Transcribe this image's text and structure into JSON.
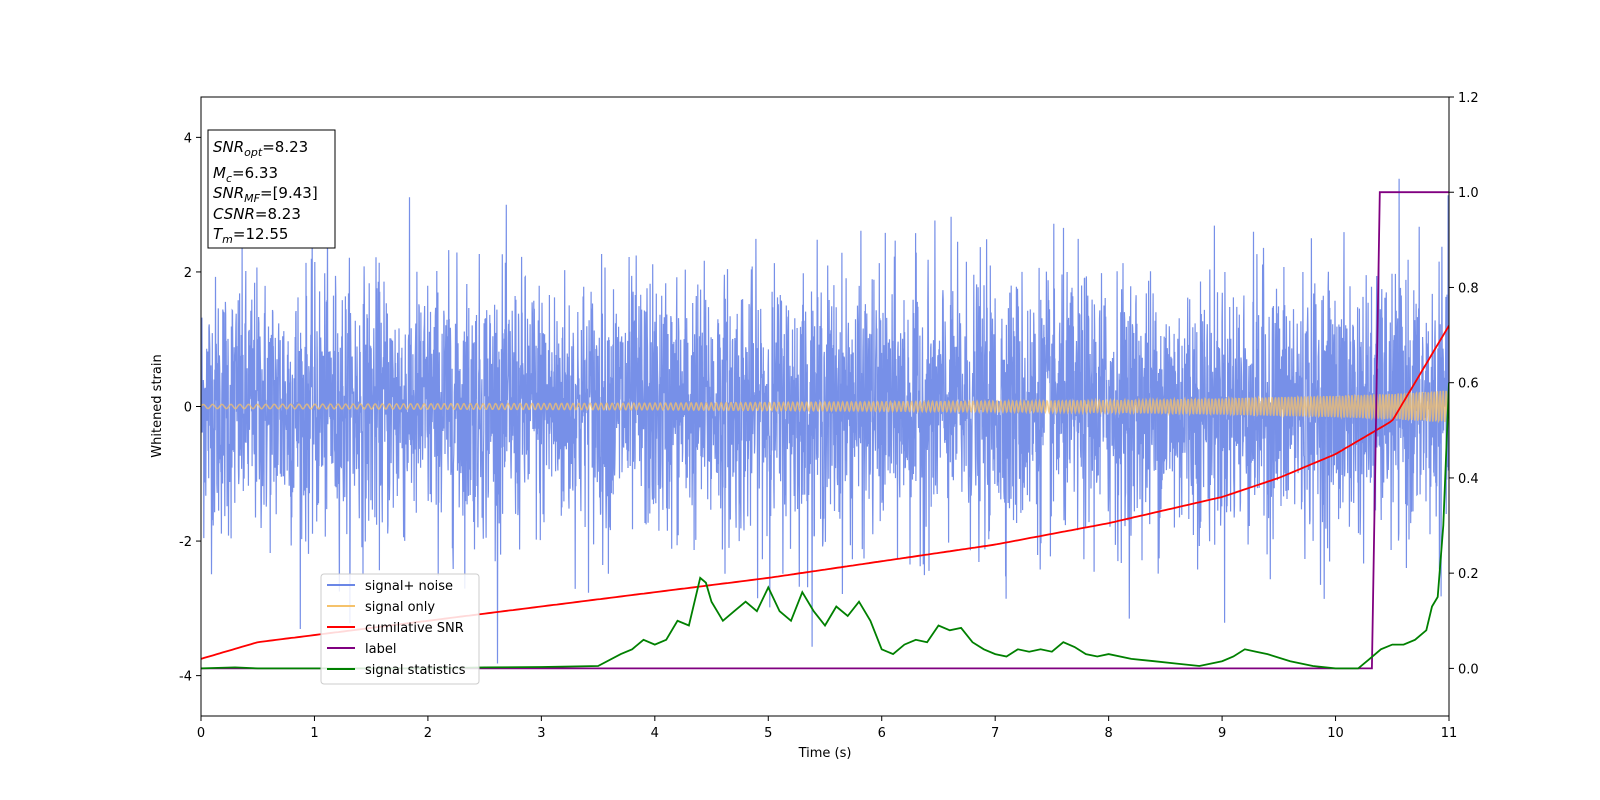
{
  "chart_data": {
    "type": "line",
    "xlabel": "Time (s)",
    "ylabel": "Whitened strain",
    "xlim": [
      0,
      11
    ],
    "ylim": [
      -4.6,
      4.6
    ],
    "y2lim": [
      -0.1,
      1.2
    ],
    "xticks": [
      0,
      1,
      2,
      3,
      4,
      5,
      6,
      7,
      8,
      9,
      10,
      11
    ],
    "yticks": [
      -4,
      -2,
      0,
      2,
      4
    ],
    "y2ticks": [
      "0.0",
      "0.2",
      "0.4",
      "0.6",
      "0.8",
      "1.0",
      "1.2"
    ],
    "grid": false,
    "legend_position": "lower-left",
    "legend": [
      "signal+ noise",
      "signal only",
      "cumilative SNR",
      "label",
      "signal statistics"
    ],
    "colors": {
      "signal_noise": "#6b87e6",
      "signal_only": "#f5c26b",
      "cumulative_snr": "#ff0000",
      "label": "#800080",
      "signal_statistics": "#008000"
    },
    "annotation": {
      "snr_opt": {
        "name": "SNR",
        "sub": "opt",
        "value": "=8.23"
      },
      "mc": {
        "name": "M",
        "sub": "c",
        "value": "=6.33"
      },
      "snr_mf": {
        "name": "SNR",
        "sub": "MF",
        "value": "=[9.43]"
      },
      "csnr": {
        "name": "CSNR",
        "value": "=8.23"
      },
      "tm": {
        "name": "T",
        "sub": "m",
        "value": "=12.55"
      }
    },
    "series": [
      {
        "name": "signal+ noise",
        "axis": "left",
        "description_envelope": {
          "typical_abs": 2.5,
          "peak_max": 4.15,
          "peak_min": -4.15
        },
        "x": [
          0,
          11
        ]
      },
      {
        "name": "signal only",
        "axis": "left",
        "amplitude_x": [
          0,
          2,
          4,
          6,
          8,
          9,
          10,
          10.5,
          11
        ],
        "amplitude_y": [
          0.03,
          0.04,
          0.05,
          0.07,
          0.09,
          0.12,
          0.16,
          0.19,
          0.24
        ]
      },
      {
        "name": "cumilative SNR",
        "axis": "right",
        "x": [
          0,
          0.5,
          1,
          2,
          3,
          4,
          5,
          6,
          7,
          8,
          9,
          9.5,
          10,
          10.5,
          11
        ],
        "y": [
          0.02,
          0.055,
          0.07,
          0.1,
          0.13,
          0.16,
          0.19,
          0.225,
          0.26,
          0.305,
          0.36,
          0.4,
          0.45,
          0.52,
          0.72
        ]
      },
      {
        "name": "label",
        "axis": "right",
        "x": [
          0,
          10.32,
          10.39,
          11
        ],
        "y": [
          0,
          0,
          1,
          1
        ]
      },
      {
        "name": "signal statistics",
        "axis": "right",
        "x": [
          0,
          0.3,
          0.5,
          1,
          2,
          2.5,
          3,
          3.5,
          3.7,
          3.8,
          3.9,
          4.0,
          4.1,
          4.2,
          4.3,
          4.4,
          4.45,
          4.5,
          4.6,
          4.7,
          4.8,
          4.9,
          5.0,
          5.1,
          5.2,
          5.3,
          5.4,
          5.5,
          5.6,
          5.7,
          5.8,
          5.9,
          6.0,
          6.1,
          6.2,
          6.3,
          6.4,
          6.5,
          6.6,
          6.7,
          6.8,
          6.9,
          7.0,
          7.1,
          7.2,
          7.3,
          7.4,
          7.5,
          7.6,
          7.7,
          7.8,
          7.9,
          8.0,
          8.2,
          8.4,
          8.6,
          8.8,
          9.0,
          9.1,
          9.2,
          9.3,
          9.4,
          9.6,
          9.8,
          10.0,
          10.2,
          10.3,
          10.4,
          10.5,
          10.6,
          10.7,
          10.8,
          10.85,
          10.9,
          10.95,
          11.0
        ],
        "y": [
          0.0,
          0.002,
          0.0,
          0.0,
          0.0,
          0.002,
          0.003,
          0.005,
          0.03,
          0.04,
          0.06,
          0.05,
          0.06,
          0.1,
          0.09,
          0.19,
          0.18,
          0.14,
          0.1,
          0.12,
          0.14,
          0.12,
          0.17,
          0.12,
          0.1,
          0.16,
          0.12,
          0.09,
          0.13,
          0.11,
          0.14,
          0.1,
          0.04,
          0.03,
          0.05,
          0.06,
          0.055,
          0.09,
          0.08,
          0.085,
          0.055,
          0.04,
          0.03,
          0.025,
          0.04,
          0.035,
          0.04,
          0.035,
          0.055,
          0.045,
          0.03,
          0.025,
          0.03,
          0.02,
          0.015,
          0.01,
          0.005,
          0.015,
          0.025,
          0.04,
          0.035,
          0.03,
          0.015,
          0.005,
          0.0,
          0.0,
          0.02,
          0.04,
          0.05,
          0.05,
          0.06,
          0.08,
          0.13,
          0.15,
          0.3,
          0.6
        ]
      }
    ]
  }
}
